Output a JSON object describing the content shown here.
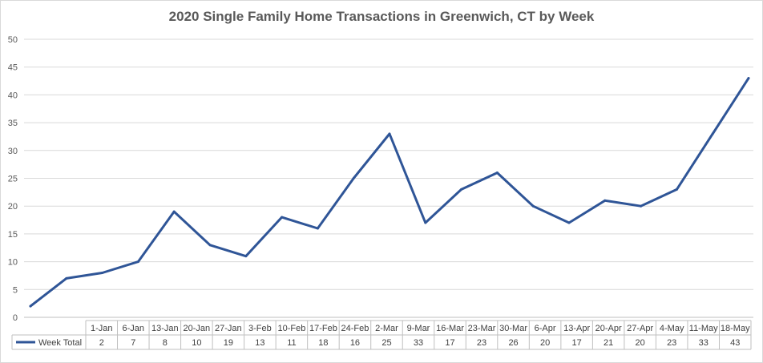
{
  "chart_data": {
    "type": "line",
    "title": "2020 Single Family Home Transactions in Greenwich, CT by Week",
    "xlabel": "",
    "ylabel": "",
    "ylim": [
      0,
      50
    ],
    "yticks": [
      "0",
      "5",
      "10",
      "15",
      "20",
      "25",
      "30",
      "35",
      "40",
      "45",
      "50"
    ],
    "grid": true,
    "legend": "data-table-left",
    "line_color": "#2f5597",
    "points": [
      2,
      7,
      8,
      10,
      19,
      13,
      11,
      18,
      16,
      25,
      33,
      17,
      23,
      26,
      20,
      17,
      21,
      20,
      23,
      33,
      43
    ],
    "categories": [
      "1-Jan",
      "6-Jan",
      "13-Jan",
      "20-Jan",
      "27-Jan",
      "3-Feb",
      "10-Feb",
      "17-Feb",
      "24-Feb",
      "2-Mar",
      "9-Mar",
      "16-Mar",
      "23-Mar",
      "30-Mar",
      "6-Apr",
      "13-Apr",
      "20-Apr",
      "27-Apr",
      "4-May",
      "11-May",
      "18-May"
    ],
    "series": [
      {
        "name": "Week Total",
        "values": [
          2,
          7,
          8,
          10,
          19,
          13,
          11,
          18,
          16,
          25,
          33,
          17,
          23,
          26,
          20,
          17,
          21,
          20,
          23,
          33,
          43
        ]
      }
    ]
  }
}
